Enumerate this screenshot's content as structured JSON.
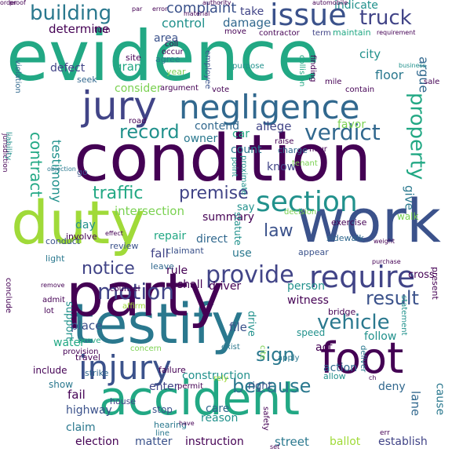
{
  "words": [
    {
      "text": "evidence",
      "color": "#22a884",
      "rot": 0
    },
    {
      "text": "condition",
      "color": "#440154",
      "rot": 0
    },
    {
      "text": "work",
      "color": "#3b528b",
      "rot": 0
    },
    {
      "text": "testify",
      "color": "#2a788e",
      "rot": 0
    },
    {
      "text": "duty",
      "color": "#a0da39",
      "rot": 0
    },
    {
      "text": "party",
      "color": "#440154",
      "rot": 90
    },
    {
      "text": "accident",
      "color": "#22a884",
      "rot": 0
    },
    {
      "text": "negligence",
      "color": "#31688e",
      "rot": 0
    },
    {
      "text": "jury",
      "color": "#414487",
      "rot": 0
    },
    {
      "text": "issue",
      "color": "#3b528b",
      "rot": 0
    },
    {
      "text": "foot",
      "color": "#440154",
      "rot": 0
    },
    {
      "text": "injury",
      "color": "#3b528b",
      "rot": 0
    },
    {
      "text": "require",
      "color": "#414487",
      "rot": 0
    },
    {
      "text": "section",
      "color": "#21918c",
      "rot": 0
    },
    {
      "text": "building",
      "color": "#2a788e",
      "rot": 0
    },
    {
      "text": "truck",
      "color": "#414487",
      "rot": 0
    },
    {
      "text": "verdict",
      "color": "#31688e",
      "rot": 0
    },
    {
      "text": "provide",
      "color": "#414487",
      "rot": 0
    },
    {
      "text": "motion",
      "color": "#414487",
      "rot": 0
    },
    {
      "text": "vehicle",
      "color": "#2a788e",
      "rot": 0
    },
    {
      "text": "because",
      "color": "#2a788e",
      "rot": 0
    },
    {
      "text": "sign",
      "color": "#2a788e",
      "rot": 0
    },
    {
      "text": "result",
      "color": "#3b528b",
      "rot": 0
    },
    {
      "text": "contract",
      "color": "#22a884",
      "rot": 90
    },
    {
      "text": "property",
      "color": "#22a884",
      "rot": 90
    },
    {
      "text": "record",
      "color": "#21918c",
      "rot": 0
    },
    {
      "text": "traffic",
      "color": "#22a884",
      "rot": 0
    },
    {
      "text": "premise",
      "color": "#414487",
      "rot": 0
    },
    {
      "text": "law",
      "color": "#3b528b",
      "rot": 0
    },
    {
      "text": "notice",
      "color": "#414487",
      "rot": 0
    },
    {
      "text": "testimony",
      "color": "#21918c",
      "rot": 90
    },
    {
      "text": "complaint",
      "color": "#3b528b",
      "rot": 0
    },
    {
      "text": "determine",
      "color": "#440154",
      "rot": 0
    },
    {
      "text": "control",
      "color": "#21918c",
      "rot": 0
    },
    {
      "text": "damage",
      "color": "#31688e",
      "rot": 0
    },
    {
      "text": "indicate",
      "color": "#21918c",
      "rot": 0
    },
    {
      "text": "take",
      "color": "#414487",
      "rot": 0
    },
    {
      "text": "area",
      "color": "#3b528b",
      "rot": 0
    },
    {
      "text": "argue",
      "color": "#31688e",
      "rot": 90
    },
    {
      "text": "city",
      "color": "#21918c",
      "rot": 0
    },
    {
      "text": "floor",
      "color": "#2a788e",
      "rot": 0
    },
    {
      "text": "defect",
      "color": "#414487",
      "rot": 0
    },
    {
      "text": "grant",
      "color": "#22a884",
      "rot": 0
    },
    {
      "text": "consider",
      "color": "#7ad151",
      "rot": 0
    },
    {
      "text": "contend",
      "color": "#31688e",
      "rot": 0
    },
    {
      "text": "allege",
      "color": "#414487",
      "rot": 0
    },
    {
      "text": "favor",
      "color": "#7ad151",
      "rot": 0
    },
    {
      "text": "car",
      "color": "#22a884",
      "rot": 0
    },
    {
      "text": "owner",
      "color": "#2a788e",
      "rot": 0
    },
    {
      "text": "count",
      "color": "#2a788e",
      "rot": 0
    },
    {
      "text": "know",
      "color": "#414487",
      "rot": 0
    },
    {
      "text": "give",
      "color": "#2a788e",
      "rot": 90
    },
    {
      "text": "intersection",
      "color": "#7ad151",
      "rot": 0
    },
    {
      "text": "summary",
      "color": "#440154",
      "rot": 0
    },
    {
      "text": "say",
      "color": "#21918c",
      "rot": 0
    },
    {
      "text": "repair",
      "color": "#22a884",
      "rot": 0
    },
    {
      "text": "fall",
      "color": "#414487",
      "rot": 0
    },
    {
      "text": "day",
      "color": "#21918c",
      "rot": 0
    },
    {
      "text": "direct",
      "color": "#31688e",
      "rot": 0
    },
    {
      "text": "use",
      "color": "#2a788e",
      "rot": 0
    },
    {
      "text": "rule",
      "color": "#440154",
      "rot": 0
    },
    {
      "text": "shall",
      "color": "#440154",
      "rot": 0
    },
    {
      "text": "driver",
      "color": "#440154",
      "rot": 0
    },
    {
      "text": "person",
      "color": "#21918c",
      "rot": 0
    },
    {
      "text": "witness",
      "color": "#440154",
      "rot": 0
    },
    {
      "text": "place",
      "color": "#3b528b",
      "rot": 0
    },
    {
      "text": "support",
      "color": "#21918c",
      "rot": 90
    },
    {
      "text": "water",
      "color": "#22a884",
      "rot": 0
    },
    {
      "text": "file",
      "color": "#3b528b",
      "rot": 0
    },
    {
      "text": "act",
      "color": "#440154",
      "rot": 0
    },
    {
      "text": "follow",
      "color": "#21918c",
      "rot": 0
    },
    {
      "text": "action",
      "color": "#31688e",
      "rot": 0
    },
    {
      "text": "construction",
      "color": "#21918c",
      "rot": 0
    },
    {
      "text": "enter",
      "color": "#414487",
      "rot": 0
    },
    {
      "text": "right",
      "color": "#3b528b",
      "rot": 0
    },
    {
      "text": "deny",
      "color": "#31688e",
      "rot": 0
    },
    {
      "text": "fail",
      "color": "#440154",
      "rot": 0
    },
    {
      "text": "highway",
      "color": "#3b528b",
      "rot": 0
    },
    {
      "text": "claim",
      "color": "#2a788e",
      "rot": 0
    },
    {
      "text": "care",
      "color": "#31688e",
      "rot": 0
    },
    {
      "text": "reason",
      "color": "#21918c",
      "rot": 0
    },
    {
      "text": "lane",
      "color": "#31688e",
      "rot": 90
    },
    {
      "text": "street",
      "color": "#2a788e",
      "rot": 0
    },
    {
      "text": "ballot",
      "color": "#a0da39",
      "rot": 0
    },
    {
      "text": "instruction",
      "color": "#440154",
      "rot": 0
    },
    {
      "text": "election",
      "color": "#440154",
      "rot": 0
    },
    {
      "text": "matter",
      "color": "#3b528b",
      "rot": 0
    },
    {
      "text": "establish",
      "color": "#414487",
      "rot": 0
    },
    {
      "text": "cause",
      "color": "#2a788e",
      "rot": 90
    },
    {
      "text": "include",
      "color": "#440154",
      "rot": 0
    },
    {
      "text": "show",
      "color": "#2a788e",
      "rot": 0
    },
    {
      "text": "stop",
      "color": "#3b528b",
      "rot": 0
    },
    {
      "text": "permit",
      "color": "#440154",
      "rot": 0
    },
    {
      "text": "cross",
      "color": "#440154",
      "rot": 0
    },
    {
      "text": "walk",
      "color": "#7ad151",
      "rot": 0
    },
    {
      "text": "exercise",
      "color": "#440154",
      "rot": 0
    },
    {
      "text": "sidewalk",
      "color": "#31688e",
      "rot": 0
    },
    {
      "text": "leave",
      "color": "#31688e",
      "rot": 0
    },
    {
      "text": "claimant",
      "color": "#3b528b",
      "rot": 0
    },
    {
      "text": "review",
      "color": "#3b528b",
      "rot": 0
    },
    {
      "text": "light",
      "color": "#2a788e",
      "rot": 0
    },
    {
      "text": "conduct",
      "color": "#3b528b",
      "rot": 0
    },
    {
      "text": "involve",
      "color": "#440154",
      "rot": 0
    },
    {
      "text": "statute",
      "color": "#21918c",
      "rot": 90
    },
    {
      "text": "drive",
      "color": "#21918c",
      "rot": 90
    },
    {
      "text": "speed",
      "color": "#21918c",
      "rot": 0
    },
    {
      "text": "allow",
      "color": "#21918c",
      "rot": 0
    },
    {
      "text": "appear",
      "color": "#3b528b",
      "rot": 0
    },
    {
      "text": "provision",
      "color": "#440154",
      "rot": 0
    },
    {
      "text": "travel",
      "color": "#440154",
      "rot": 0
    },
    {
      "text": "strike",
      "color": "#31688e",
      "rot": 0
    },
    {
      "text": "failure",
      "color": "#440154",
      "rot": 0
    },
    {
      "text": "house",
      "color": "#414487",
      "rot": 0
    },
    {
      "text": "hearing",
      "color": "#2a788e",
      "rot": 0
    },
    {
      "text": "line",
      "color": "#2a788e",
      "rot": 0
    },
    {
      "text": "apply",
      "color": "#2a788e",
      "rot": 0
    },
    {
      "text": "bridge",
      "color": "#440154",
      "rot": 0
    },
    {
      "text": "present",
      "color": "#440154",
      "rot": 90
    },
    {
      "text": "site",
      "color": "#440154",
      "rot": 0
    },
    {
      "text": "agree",
      "color": "#2a788e",
      "rot": 0
    },
    {
      "text": "year",
      "color": "#7ad151",
      "rot": 0
    },
    {
      "text": "seek",
      "color": "#31688e",
      "rot": 0
    },
    {
      "text": "employee",
      "color": "#3b528b",
      "rot": 90
    },
    {
      "text": "coll",
      "color": "#440154",
      "rot": 0
    },
    {
      "text": "occur",
      "color": "#440154",
      "rot": 0
    },
    {
      "text": "move",
      "color": "#440154",
      "rot": 0
    },
    {
      "text": "contractor",
      "color": "#440154",
      "rot": 0
    },
    {
      "text": "term",
      "color": "#414487",
      "rot": 0
    },
    {
      "text": "maintain",
      "color": "#22a884",
      "rot": 0
    },
    {
      "text": "turn",
      "color": "#440154",
      "rot": 0
    },
    {
      "text": "purpose",
      "color": "#21918c",
      "rot": 0
    },
    {
      "text": "vote",
      "color": "#440154",
      "rot": 0
    },
    {
      "text": "mile",
      "color": "#440154",
      "rot": 0
    },
    {
      "text": "raise",
      "color": "#440154",
      "rot": 0
    },
    {
      "text": "point",
      "color": "#21918c",
      "rot": 90
    },
    {
      "text": "hour",
      "color": "#440154",
      "rot": 0
    },
    {
      "text": "contain",
      "color": "#440154",
      "rot": 0
    },
    {
      "text": "road",
      "color": "#440154",
      "rot": 0
    },
    {
      "text": "argument",
      "color": "#440154",
      "rot": 0
    },
    {
      "text": "proximate",
      "color": "#21918c",
      "rot": 90
    },
    {
      "text": "collision",
      "color": "#22a884",
      "rot": 90
    },
    {
      "text": "finding",
      "color": "#440154",
      "rot": 90
    },
    {
      "text": "charge",
      "color": "#31688e",
      "rot": 0
    },
    {
      "text": "tenant",
      "color": "#7ad151",
      "rot": 0
    },
    {
      "text": "decision",
      "color": "#7ad151",
      "rot": 0
    },
    {
      "text": "sale",
      "color": "#440154",
      "rot": 0
    },
    {
      "text": "business",
      "color": "#21918c",
      "rot": 0
    },
    {
      "text": "violation",
      "color": "#31688e",
      "rot": 90
    },
    {
      "text": "go",
      "color": "#3b528b",
      "rot": 0
    },
    {
      "text": "admit",
      "color": "#440154",
      "rot": 0
    },
    {
      "text": "lot",
      "color": "#440154",
      "rot": 0
    },
    {
      "text": "conclude",
      "color": "#440154",
      "rot": 90
    },
    {
      "text": "exist",
      "color": "#2a788e",
      "rot": 0
    },
    {
      "text": "counsel",
      "color": "#440154",
      "rot": 0
    },
    {
      "text": "affirm",
      "color": "#a0da39",
      "rot": 0
    },
    {
      "text": "cite",
      "color": "#7ad151",
      "rot": 90
    },
    {
      "text": "rely",
      "color": "#a0da39",
      "rot": 0
    },
    {
      "text": "concern",
      "color": "#7ad151",
      "rot": 0
    },
    {
      "text": "prove",
      "color": "#22a884",
      "rot": 0
    },
    {
      "text": "objection",
      "color": "#2a788e",
      "rot": 0
    },
    {
      "text": "safety",
      "color": "#440154",
      "rot": 90
    },
    {
      "text": "statement",
      "color": "#21918c",
      "rot": 90
    },
    {
      "text": "deliver",
      "color": "#2a788e",
      "rot": 90
    },
    {
      "text": "purchase",
      "color": "#440154",
      "rot": 0
    },
    {
      "text": "weight",
      "color": "#440154",
      "rot": 0
    },
    {
      "text": "liability",
      "color": "#21918c",
      "rot": 90
    },
    {
      "text": "jurisdiction",
      "color": "#440154",
      "rot": 90
    },
    {
      "text": "order",
      "color": "#440154",
      "rot": 0
    },
    {
      "text": "authority",
      "color": "#440154",
      "rot": 0
    },
    {
      "text": "error",
      "color": "#440154",
      "rot": 0
    },
    {
      "text": "material",
      "color": "#440154",
      "rot": 0
    },
    {
      "text": "automobile",
      "color": "#440154",
      "rot": 0
    },
    {
      "text": "requirement",
      "color": "#440154",
      "rot": 0
    },
    {
      "text": "proof",
      "color": "#440154",
      "rot": 0
    },
    {
      "text": "par",
      "color": "#440154",
      "rot": 0
    },
    {
      "text": "ch",
      "color": "#440154",
      "rot": 0
    },
    {
      "text": "err",
      "color": "#440154",
      "rot": 0
    },
    {
      "text": "set",
      "color": "#440154",
      "rot": 0
    },
    {
      "text": "effect",
      "color": "#440154",
      "rot": 0
    },
    {
      "text": "remove",
      "color": "#440154",
      "rot": 0
    },
    {
      "text": "have",
      "color": "#440154",
      "rot": 0
    }
  ]
}
